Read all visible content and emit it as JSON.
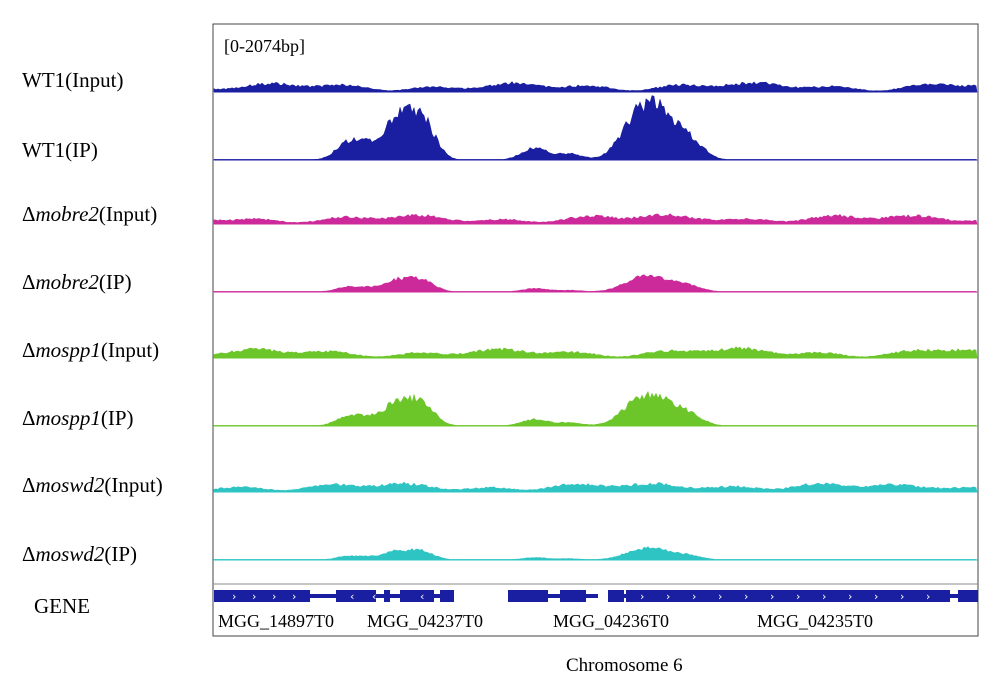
{
  "range_label": "[0-2074bp]",
  "chromosome_label": "Chromosome 6",
  "gene_track_label": "GENE",
  "colors": {
    "wt": "#1a1ea0",
    "mobre2": "#cc2a9a",
    "mospp1": "#6cc62a",
    "moswd2": "#2ec4c4",
    "gene": "#1a1ea0"
  },
  "tracks": [
    {
      "prefix": "",
      "italic": "",
      "label": "WT1",
      "suffix": "(Input)",
      "color": "#1a1ea0",
      "type": "input",
      "scale": 1.0
    },
    {
      "prefix": "",
      "italic": "",
      "label": "WT1",
      "suffix": "(IP)",
      "color": "#1a1ea0",
      "type": "ip",
      "scale": 1.0
    },
    {
      "prefix": "Δ",
      "italic": "mobre2",
      "label": "",
      "suffix": "(Input)",
      "color": "#cc2a9a",
      "type": "input",
      "scale": 1.0
    },
    {
      "prefix": "Δ",
      "italic": "mobre2",
      "label": "",
      "suffix": "(IP)",
      "color": "#cc2a9a",
      "type": "ip",
      "scale": 0.28
    },
    {
      "prefix": "Δ",
      "italic": "mospp1",
      "label": "",
      "suffix": "(Input)",
      "color": "#6cc62a",
      "type": "input",
      "scale": 1.0
    },
    {
      "prefix": "Δ",
      "italic": "mospp1",
      "label": "",
      "suffix": "(IP)",
      "color": "#6cc62a",
      "type": "ip",
      "scale": 0.55
    },
    {
      "prefix": "Δ",
      "italic": "moswd2",
      "label": "",
      "suffix": "(Input)",
      "color": "#2ec4c4",
      "type": "input",
      "scale": 1.0
    },
    {
      "prefix": "Δ",
      "italic": "moswd2",
      "label": "",
      "suffix": "(IP)",
      "color": "#2ec4c4",
      "type": "ip",
      "scale": 0.2
    }
  ],
  "genes": [
    {
      "name": "MGG_14897T0"
    },
    {
      "name": "MGG_04237T0"
    },
    {
      "name": "MGG_04236T0"
    },
    {
      "name": "MGG_04235T0"
    }
  ]
}
